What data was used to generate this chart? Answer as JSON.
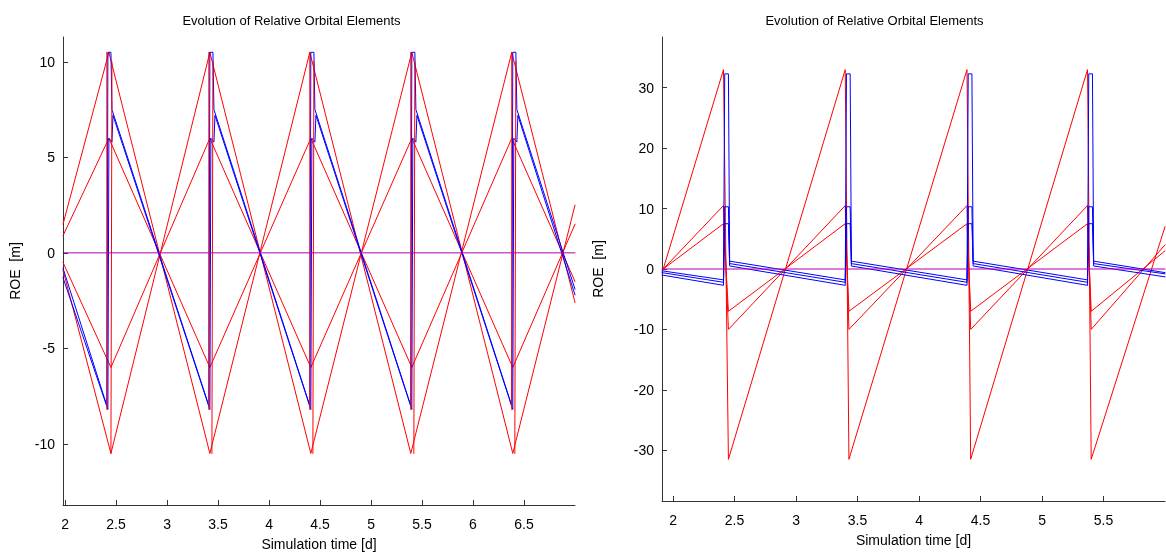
{
  "chart_data": [
    {
      "type": "line",
      "title": "Evolution of Relative Orbital Elements",
      "xlabel": "Simulation time [d]",
      "ylabel": "ROE  [m]",
      "xlim": [
        1.98,
        7.0
      ],
      "xticks": [
        2,
        2.5,
        3,
        3.5,
        4,
        4.5,
        5,
        5.5,
        6,
        6.5
      ],
      "ylim": [
        -13.2,
        11.3
      ],
      "yticks": [
        -10,
        -5,
        0,
        5,
        10
      ],
      "grid": false,
      "marker": "none",
      "line_style": "solid",
      "series": [
        {
          "color": "#ff0000",
          "x": [
            1.98,
            2.43,
            3.42,
            4.4,
            5.39,
            6.38,
            7.0
          ],
          "values": [
            1.5,
            10.5,
            -10.5,
            10.5,
            -10.5,
            10.5,
            -2.6
          ]
        },
        {
          "color": "#ff0000",
          "x": [
            1.98,
            2.45,
            3.42,
            4.41,
            5.4,
            6.39,
            7.0
          ],
          "values": [
            -0.9,
            -10.5,
            10.5,
            -10.5,
            10.5,
            -10.5,
            2.5
          ]
        },
        {
          "color": "#ff0000",
          "x": [
            1.98,
            2.43,
            3.42,
            4.41,
            5.4,
            6.38,
            7.0
          ],
          "values": [
            0.9,
            6,
            -6,
            6,
            -6,
            6,
            -1.5
          ]
        },
        {
          "color": "#ff0000",
          "x": [
            1.98,
            2.45,
            3.42,
            4.41,
            5.4,
            6.39,
            7.0
          ],
          "values": [
            -0.5,
            -6,
            6,
            -6,
            6,
            -6,
            1.5
          ]
        },
        {
          "color": "#0000ff",
          "x": [
            1.98,
            2.41,
            2.42,
            2.45,
            2.46,
            3.41,
            3.42,
            3.45,
            3.46,
            4.4,
            4.41,
            4.44,
            4.45,
            5.39,
            5.4,
            5.43,
            5.44,
            6.38,
            6.39,
            6.42,
            6.43,
            7.0
          ],
          "values": [
            -0.8,
            -8,
            10.5,
            10.5,
            7.5,
            -8,
            10.5,
            10.5,
            7.5,
            -8,
            10.5,
            10.5,
            7.5,
            -8,
            10.5,
            10.5,
            7.5,
            -8,
            10.5,
            10.5,
            7.5,
            -1.9
          ]
        },
        {
          "color": "#0000ff",
          "x": [
            1.98,
            2.42,
            2.43,
            2.46,
            2.47,
            3.42,
            3.43,
            3.46,
            3.47,
            4.41,
            4.42,
            4.45,
            4.46,
            5.4,
            5.41,
            5.44,
            5.45,
            6.39,
            6.4,
            6.43,
            6.44,
            7.0
          ],
          "values": [
            -1.3,
            -8.2,
            6,
            5.8,
            7.2,
            -8.2,
            6,
            5.8,
            7.2,
            -8.2,
            6,
            5.8,
            7.2,
            -8.2,
            6,
            5.8,
            7.2,
            -8.2,
            6,
            5.8,
            7.2,
            -2.2
          ]
        },
        {
          "color": "#ff0000",
          "x": [
            2.41,
            2.41
          ],
          "values": [
            -8.2,
            10.5
          ]
        },
        {
          "color": "#ff0000",
          "x": [
            2.45,
            2.46
          ],
          "values": [
            -10.5,
            10
          ]
        },
        {
          "color": "#ff0000",
          "x": [
            3.41,
            3.41
          ],
          "values": [
            -8.2,
            10.5
          ]
        },
        {
          "color": "#ff0000",
          "x": [
            3.44,
            3.45
          ],
          "values": [
            -10.5,
            10
          ]
        },
        {
          "color": "#ff0000",
          "x": [
            4.4,
            4.4
          ],
          "values": [
            -8.2,
            10.5
          ]
        },
        {
          "color": "#ff0000",
          "x": [
            4.43,
            4.44
          ],
          "values": [
            -10.5,
            10
          ]
        },
        {
          "color": "#ff0000",
          "x": [
            5.39,
            5.39
          ],
          "values": [
            -8.2,
            10.5
          ]
        },
        {
          "color": "#ff0000",
          "x": [
            5.42,
            5.43
          ],
          "values": [
            -10.5,
            10
          ]
        },
        {
          "color": "#ff0000",
          "x": [
            6.38,
            6.38
          ],
          "values": [
            -8.2,
            10.5
          ]
        },
        {
          "color": "#ff0000",
          "x": [
            6.41,
            6.42
          ],
          "values": [
            -10.5,
            10
          ]
        },
        {
          "color": "#b000b0",
          "x": [
            1.98,
            7.0
          ],
          "values": [
            0,
            0
          ]
        }
      ]
    },
    {
      "type": "line",
      "title": "Evolution of Relative Orbital Elements",
      "xlabel": "Simulation time [d]",
      "ylabel": "ROE  [m]",
      "xlim": [
        1.91,
        6.0
      ],
      "xticks": [
        2,
        2.5,
        3,
        3.5,
        4,
        4.5,
        5,
        5.5
      ],
      "ylim": [
        -38.4,
        38.4
      ],
      "yticks": [
        -30,
        -20,
        -10,
        0,
        10,
        20,
        30
      ],
      "grid": false,
      "marker": "none",
      "line_style": "solid",
      "series": [
        {
          "color": "#ff0000",
          "x": [
            1.92,
            2.41,
            2.45,
            3.4,
            3.43,
            4.39,
            4.42,
            5.37,
            5.4,
            6.0
          ],
          "values": [
            0,
            33,
            -31.5,
            33,
            -31.5,
            33,
            -31.5,
            33,
            -31.5,
            7
          ]
        },
        {
          "color": "#ff0000",
          "x": [
            1.92,
            2.41,
            2.45,
            3.4,
            3.43,
            4.39,
            4.42,
            5.37,
            5.4,
            6.0
          ],
          "values": [
            0,
            10.5,
            -10,
            10.5,
            -10,
            10.5,
            -10,
            10.5,
            -10,
            4
          ]
        },
        {
          "color": "#ff0000",
          "x": [
            1.92,
            2.41,
            2.45,
            3.4,
            3.43,
            4.39,
            4.42,
            5.37,
            5.4,
            6.0
          ],
          "values": [
            0,
            7.5,
            -7,
            7.5,
            -7,
            7.5,
            -7,
            7.5,
            -7,
            3
          ]
        },
        {
          "color": "#0000ff",
          "x": [
            1.91,
            2.41,
            2.42,
            2.45,
            2.46,
            3.4,
            3.41,
            3.44,
            3.45,
            4.39,
            4.4,
            4.43,
            4.44,
            5.37,
            5.38,
            5.41,
            5.42,
            6.0
          ],
          "values": [
            -0.3,
            -1.8,
            32.3,
            32.3,
            1.3,
            -1.8,
            32.3,
            32.3,
            1.3,
            -1.8,
            32.3,
            32.3,
            1.3,
            -1.8,
            32.3,
            32.3,
            1.3,
            -0.6
          ]
        },
        {
          "color": "#0000ff",
          "x": [
            1.91,
            2.41,
            2.42,
            2.45,
            2.46,
            3.4,
            3.41,
            3.44,
            3.45,
            4.39,
            4.4,
            4.43,
            4.44,
            5.37,
            5.38,
            5.41,
            5.42,
            6.0
          ],
          "values": [
            -1,
            -2.7,
            10.3,
            10.3,
            0.5,
            -2.7,
            10.3,
            10.3,
            0.5,
            -2.7,
            10.3,
            10.3,
            0.5,
            -2.7,
            10.3,
            10.3,
            0.5,
            -1.3
          ]
        },
        {
          "color": "#0000ff",
          "x": [
            1.91,
            2.41,
            2.42,
            2.45,
            2.46,
            3.4,
            3.41,
            3.44,
            3.45,
            4.39,
            4.4,
            4.43,
            4.44,
            5.37,
            5.38,
            5.41,
            5.42,
            6.0
          ],
          "values": [
            -0.6,
            -2.2,
            7.5,
            7.5,
            0.9,
            -2.2,
            7.5,
            7.5,
            0.9,
            -2.2,
            7.5,
            7.5,
            0.9,
            -2.2,
            7.5,
            7.5,
            0.9,
            -0.8
          ]
        },
        {
          "color": "#b000b0",
          "x": [
            1.91,
            6.0
          ],
          "values": [
            0,
            0
          ]
        }
      ]
    }
  ]
}
